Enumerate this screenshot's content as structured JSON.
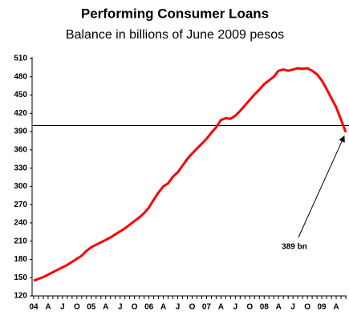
{
  "chart_data": {
    "type": "line",
    "title": "Performing Consumer Loans",
    "subtitle": "Balance in billions of June 2009 pesos",
    "categories": [
      "04",
      null,
      null,
      "A",
      null,
      null,
      "J",
      null,
      null,
      "O",
      null,
      null,
      "05",
      null,
      null,
      "A",
      null,
      null,
      "J",
      null,
      null,
      "O",
      null,
      null,
      "06",
      null,
      null,
      "A",
      null,
      null,
      "J",
      null,
      null,
      "O",
      null,
      null,
      "07",
      null,
      null,
      "A",
      null,
      null,
      "J",
      null,
      null,
      "O",
      null,
      null,
      "08",
      null,
      null,
      "A",
      null,
      null,
      "J",
      null,
      null,
      "O",
      null,
      null,
      "09",
      null,
      null,
      "A",
      null,
      null
    ],
    "series": [
      {
        "name": "Performing Consumer Loans",
        "color": "#ff0000",
        "values": [
          145,
          148,
          151,
          155,
          159,
          163,
          167,
          171,
          176,
          181,
          186,
          194,
          200,
          204,
          208,
          212,
          216,
          221,
          226,
          231,
          237,
          243,
          249,
          256,
          265,
          278,
          290,
          300,
          305,
          316,
          323,
          334,
          345,
          354,
          362,
          370,
          378,
          388,
          397,
          409,
          412,
          411,
          416,
          424,
          433,
          442,
          451,
          459,
          468,
          474,
          480,
          490,
          492,
          490,
          492,
          494,
          493,
          494,
          490,
          484,
          474,
          460,
          445,
          430,
          410,
          389
        ]
      }
    ],
    "ylim": [
      120,
      510
    ],
    "yticks": [
      120,
      150,
      180,
      210,
      240,
      270,
      300,
      330,
      360,
      390,
      420,
      450,
      480,
      510
    ],
    "reference_line": 400,
    "annotation": "389 bn"
  }
}
